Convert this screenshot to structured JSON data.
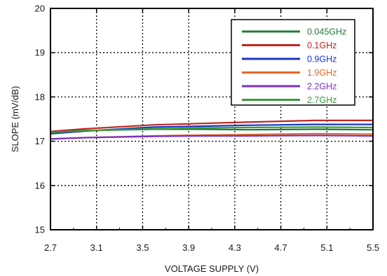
{
  "chart_data": {
    "type": "line",
    "title": "",
    "xlabel": "VOLTAGE SUPPLY (V)",
    "ylabel": "SLOPE (mV/dB)",
    "xlim": [
      2.7,
      5.5
    ],
    "ylim": [
      15,
      20
    ],
    "xticks": [
      "2.7",
      "3.1",
      "3.5",
      "3.9",
      "4.3",
      "4.7",
      "5.1",
      "5.5"
    ],
    "yticks": [
      "15",
      "16",
      "17",
      "18",
      "19",
      "20"
    ],
    "grid": "dotted",
    "legend_position": "top-right",
    "series": [
      {
        "name": "0.045GHz",
        "color": "#1f7a3a",
        "x": [
          2.7,
          3.0,
          3.6,
          4.0,
          4.4,
          5.0,
          5.5
        ],
        "y": [
          17.21,
          17.24,
          17.27,
          17.27,
          17.26,
          17.27,
          17.26
        ]
      },
      {
        "name": "0.1GHz",
        "color": "#c0261f",
        "x": [
          2.7,
          3.0,
          3.6,
          4.0,
          4.4,
          5.0,
          5.5
        ],
        "y": [
          17.22,
          17.28,
          17.37,
          17.4,
          17.43,
          17.47,
          17.47
        ]
      },
      {
        "name": "0.9GHz",
        "color": "#1a35c8",
        "x": [
          2.7,
          3.0,
          3.6,
          4.0,
          4.4,
          5.0,
          5.5
        ],
        "y": [
          17.17,
          17.23,
          17.32,
          17.34,
          17.36,
          17.38,
          17.38
        ]
      },
      {
        "name": "1.9GHz",
        "color": "#e06a2a",
        "x": [
          2.7,
          3.0,
          3.6,
          4.0,
          4.4,
          5.0,
          5.5
        ],
        "y": [
          17.05,
          17.08,
          17.12,
          17.14,
          17.15,
          17.17,
          17.16
        ]
      },
      {
        "name": "2.2GHz",
        "color": "#7a2fc9",
        "x": [
          2.7,
          3.0,
          3.6,
          4.0,
          4.4,
          5.0,
          5.5
        ],
        "y": [
          17.05,
          17.08,
          17.11,
          17.12,
          17.12,
          17.13,
          17.12
        ]
      },
      {
        "name": "2.7GHz",
        "color": "#3a9a3a",
        "x": [
          2.7,
          3.0,
          3.6,
          4.0,
          4.4,
          5.0,
          5.5
        ],
        "y": [
          17.2,
          17.24,
          17.28,
          17.3,
          17.31,
          17.32,
          17.31
        ]
      }
    ]
  }
}
